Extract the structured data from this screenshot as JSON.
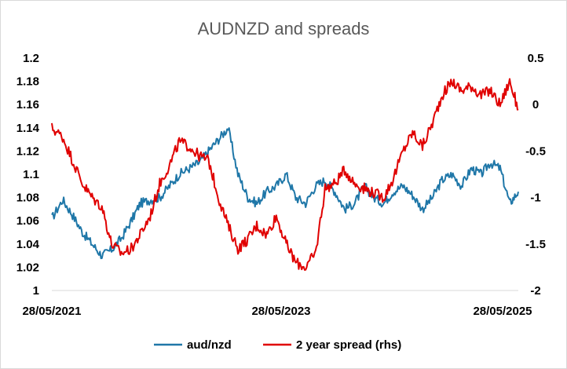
{
  "chart_data": {
    "type": "line",
    "title": "AUDNZD and spreads",
    "x_ticks": [
      "28/05/2021",
      "28/05/2023",
      "28/05/2025"
    ],
    "x_range": [
      "2021-05-28",
      "2025-05-28"
    ],
    "y_left": {
      "ticks": [
        "1.2",
        "1.18",
        "1.16",
        "1.14",
        "1.12",
        "1.1",
        "1.08",
        "1.06",
        "1.04",
        "1.02",
        "1"
      ],
      "ylim": [
        1.0,
        1.2
      ]
    },
    "y_right": {
      "ticks": [
        "0.5",
        "0",
        "-0.5",
        "-1",
        "-1.5",
        "-2"
      ],
      "ylim": [
        -2.0,
        0.5
      ]
    },
    "grid": false,
    "legend_position": "bottom",
    "series": [
      {
        "name": "aud/nzd",
        "axis": "left",
        "color": "#1f77a8",
        "x": [
          "2021-05-28",
          "2021-07-01",
          "2021-08-01",
          "2021-09-01",
          "2021-10-01",
          "2021-11-01",
          "2021-12-01",
          "2022-01-01",
          "2022-02-01",
          "2022-03-01",
          "2022-04-01",
          "2022-05-01",
          "2022-06-01",
          "2022-07-01",
          "2022-08-01",
          "2022-09-01",
          "2022-10-01",
          "2022-11-01",
          "2022-12-01",
          "2023-01-01",
          "2023-02-01",
          "2023-03-01",
          "2023-04-01",
          "2023-05-01",
          "2023-06-01",
          "2023-07-01",
          "2023-08-01",
          "2023-09-01",
          "2023-10-01",
          "2023-11-01",
          "2023-12-01",
          "2024-01-01",
          "2024-02-01",
          "2024-03-01",
          "2024-04-01",
          "2024-05-01",
          "2024-06-01",
          "2024-07-01",
          "2024-08-01",
          "2024-09-01",
          "2024-10-01",
          "2024-11-01",
          "2024-12-01",
          "2025-01-01",
          "2025-02-01",
          "2025-03-01",
          "2025-04-01",
          "2025-05-01",
          "2025-05-28"
        ],
        "values": [
          1.062,
          1.078,
          1.065,
          1.05,
          1.04,
          1.03,
          1.035,
          1.045,
          1.06,
          1.075,
          1.078,
          1.08,
          1.09,
          1.1,
          1.105,
          1.11,
          1.12,
          1.13,
          1.14,
          1.1,
          1.08,
          1.075,
          1.085,
          1.09,
          1.1,
          1.08,
          1.075,
          1.09,
          1.095,
          1.085,
          1.07,
          1.075,
          1.09,
          1.08,
          1.075,
          1.085,
          1.09,
          1.082,
          1.07,
          1.08,
          1.095,
          1.1,
          1.09,
          1.105,
          1.1,
          1.11,
          1.105,
          1.075,
          1.085
        ]
      },
      {
        "name": "2 year spread (rhs)",
        "axis": "right",
        "color": "#e00000",
        "x": [
          "2021-05-28",
          "2021-07-01",
          "2021-08-01",
          "2021-09-01",
          "2021-10-01",
          "2021-11-01",
          "2021-12-01",
          "2022-01-01",
          "2022-02-01",
          "2022-03-01",
          "2022-04-01",
          "2022-05-01",
          "2022-06-01",
          "2022-07-01",
          "2022-08-01",
          "2022-09-01",
          "2022-10-01",
          "2022-11-01",
          "2022-12-01",
          "2023-01-01",
          "2023-02-01",
          "2023-03-01",
          "2023-04-01",
          "2023-05-01",
          "2023-06-01",
          "2023-07-01",
          "2023-08-01",
          "2023-09-01",
          "2023-10-01",
          "2023-11-01",
          "2023-12-01",
          "2024-01-01",
          "2024-02-01",
          "2024-03-01",
          "2024-04-01",
          "2024-05-01",
          "2024-06-01",
          "2024-07-01",
          "2024-08-01",
          "2024-09-01",
          "2024-10-01",
          "2024-11-01",
          "2024-12-01",
          "2025-01-01",
          "2025-02-01",
          "2025-03-01",
          "2025-04-01",
          "2025-05-01",
          "2025-05-28"
        ],
        "values": [
          -0.25,
          -0.35,
          -0.6,
          -0.85,
          -1.0,
          -1.1,
          -1.5,
          -1.6,
          -1.55,
          -1.4,
          -1.2,
          -0.85,
          -0.65,
          -0.4,
          -0.45,
          -0.55,
          -0.6,
          -1.0,
          -1.3,
          -1.55,
          -1.45,
          -1.3,
          -1.4,
          -1.2,
          -1.5,
          -1.7,
          -1.75,
          -1.6,
          -0.9,
          -0.85,
          -0.7,
          -0.85,
          -0.9,
          -0.95,
          -1.0,
          -0.8,
          -0.5,
          -0.3,
          -0.45,
          -0.2,
          0.1,
          0.25,
          0.15,
          0.2,
          0.1,
          0.15,
          0.0,
          0.25,
          -0.05
        ]
      }
    ]
  }
}
